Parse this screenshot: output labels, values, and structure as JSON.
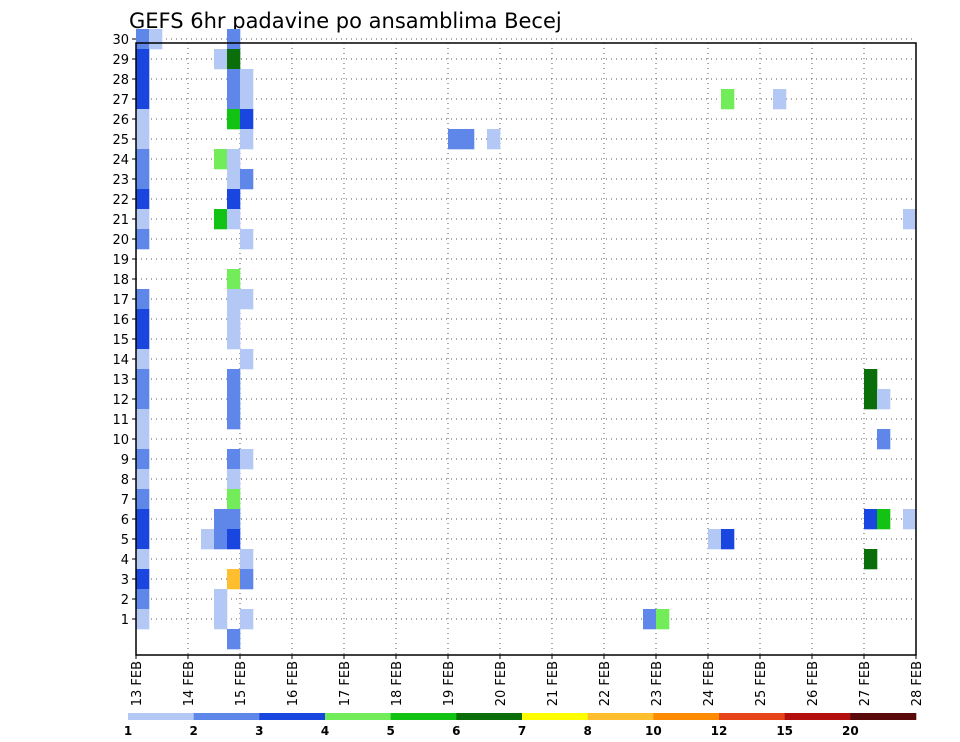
{
  "chart_data": {
    "type": "heatmap",
    "title": "GEFS 6hr padavine po ansamblima Becej",
    "xlabel": "",
    "ylabel": "",
    "x_ticks": [
      "13 FEB",
      "14 FEB",
      "15 FEB",
      "16 FEB",
      "17 FEB",
      "18 FEB",
      "19 FEB",
      "20 FEB",
      "21 FEB",
      "22 FEB",
      "23 FEB",
      "24 FEB",
      "25 FEB",
      "26 FEB",
      "27 FEB",
      "28 FEB"
    ],
    "y_ticks": [
      "1",
      "2",
      "3",
      "4",
      "5",
      "6",
      "7",
      "8",
      "9",
      "10",
      "11",
      "12",
      "13",
      "14",
      "15",
      "16",
      "17",
      "18",
      "19",
      "20",
      "21",
      "22",
      "23",
      "24",
      "25",
      "26",
      "27",
      "28",
      "29",
      "30"
    ],
    "xlim_days": [
      13,
      28
    ],
    "ylim": [
      0,
      30
    ],
    "grid": true,
    "colorbar": {
      "labels": [
        "1",
        "2",
        "3",
        "4",
        "5",
        "6",
        "7",
        "8",
        "10",
        "12",
        "15",
        "20"
      ],
      "colors": [
        "#b3c8f5",
        "#5f87ea",
        "#1a46e0",
        "#73ec5a",
        "#13c313",
        "#0a6e0a",
        "#ffff00",
        "#ffbe2e",
        "#ff8c00",
        "#e8441a",
        "#b40f0f",
        "#5a0a0a"
      ]
    },
    "cells": [
      {
        "member": 30,
        "start": "13 FEB 00Z",
        "level": 2
      },
      {
        "member": 30,
        "start": "13 FEB 06Z",
        "level": 1
      },
      {
        "member": 30,
        "start": "14 FEB 18Z",
        "level": 2
      },
      {
        "member": 29,
        "start": "13 FEB 00Z",
        "level": 3
      },
      {
        "member": 29,
        "start": "14 FEB 12Z",
        "level": 1
      },
      {
        "member": 29,
        "start": "14 FEB 18Z",
        "level": 6
      },
      {
        "member": 28,
        "start": "13 FEB 00Z",
        "level": 3
      },
      {
        "member": 28,
        "start": "14 FEB 18Z",
        "level": 2
      },
      {
        "member": 28,
        "start": "15 FEB 00Z",
        "level": 1
      },
      {
        "member": 27,
        "start": "13 FEB 00Z",
        "level": 3
      },
      {
        "member": 27,
        "start": "14 FEB 18Z",
        "level": 2
      },
      {
        "member": 27,
        "start": "15 FEB 00Z",
        "level": 1
      },
      {
        "member": 27,
        "start": "24 FEB 06Z",
        "level": 4
      },
      {
        "member": 27,
        "start": "25 FEB 06Z",
        "level": 1
      },
      {
        "member": 26,
        "start": "13 FEB 00Z",
        "level": 1
      },
      {
        "member": 26,
        "start": "14 FEB 18Z",
        "level": 5
      },
      {
        "member": 26,
        "start": "15 FEB 00Z",
        "level": 3
      },
      {
        "member": 25,
        "start": "13 FEB 00Z",
        "level": 1
      },
      {
        "member": 25,
        "start": "15 FEB 00Z",
        "level": 1
      },
      {
        "member": 25,
        "start": "19 FEB 00Z",
        "level": 2
      },
      {
        "member": 25,
        "start": "19 FEB 06Z",
        "level": 2
      },
      {
        "member": 25,
        "start": "19 FEB 18Z",
        "level": 1
      },
      {
        "member": 24,
        "start": "13 FEB 00Z",
        "level": 2
      },
      {
        "member": 24,
        "start": "14 FEB 12Z",
        "level": 4
      },
      {
        "member": 24,
        "start": "14 FEB 18Z",
        "level": 1
      },
      {
        "member": 23,
        "start": "13 FEB 00Z",
        "level": 2
      },
      {
        "member": 23,
        "start": "14 FEB 18Z",
        "level": 1
      },
      {
        "member": 23,
        "start": "15 FEB 00Z",
        "level": 2
      },
      {
        "member": 22,
        "start": "13 FEB 00Z",
        "level": 3
      },
      {
        "member": 22,
        "start": "14 FEB 18Z",
        "level": 3
      },
      {
        "member": 21,
        "start": "13 FEB 00Z",
        "level": 1
      },
      {
        "member": 21,
        "start": "14 FEB 12Z",
        "level": 5
      },
      {
        "member": 21,
        "start": "14 FEB 18Z",
        "level": 1
      },
      {
        "member": 21,
        "start": "27 FEB 18Z",
        "level": 1
      },
      {
        "member": 20,
        "start": "13 FEB 00Z",
        "level": 2
      },
      {
        "member": 20,
        "start": "15 FEB 00Z",
        "level": 1
      },
      {
        "member": 18,
        "start": "14 FEB 18Z",
        "level": 4
      },
      {
        "member": 17,
        "start": "13 FEB 00Z",
        "level": 2
      },
      {
        "member": 17,
        "start": "14 FEB 18Z",
        "level": 1
      },
      {
        "member": 17,
        "start": "15 FEB 00Z",
        "level": 1
      },
      {
        "member": 16,
        "start": "13 FEB 00Z",
        "level": 3
      },
      {
        "member": 16,
        "start": "14 FEB 18Z",
        "level": 1
      },
      {
        "member": 15,
        "start": "13 FEB 00Z",
        "level": 3
      },
      {
        "member": 15,
        "start": "14 FEB 18Z",
        "level": 1
      },
      {
        "member": 14,
        "start": "13 FEB 00Z",
        "level": 1
      },
      {
        "member": 14,
        "start": "15 FEB 00Z",
        "level": 1
      },
      {
        "member": 13,
        "start": "13 FEB 00Z",
        "level": 2
      },
      {
        "member": 13,
        "start": "14 FEB 18Z",
        "level": 2
      },
      {
        "member": 13,
        "start": "27 FEB 00Z",
        "level": 6
      },
      {
        "member": 12,
        "start": "13 FEB 00Z",
        "level": 2
      },
      {
        "member": 12,
        "start": "14 FEB 18Z",
        "level": 2
      },
      {
        "member": 12,
        "start": "27 FEB 00Z",
        "level": 6
      },
      {
        "member": 12,
        "start": "27 FEB 06Z",
        "level": 1
      },
      {
        "member": 11,
        "start": "13 FEB 00Z",
        "level": 1
      },
      {
        "member": 11,
        "start": "14 FEB 18Z",
        "level": 2
      },
      {
        "member": 10,
        "start": "13 FEB 00Z",
        "level": 1
      },
      {
        "member": 10,
        "start": "27 FEB 06Z",
        "level": 2
      },
      {
        "member": 9,
        "start": "13 FEB 00Z",
        "level": 2
      },
      {
        "member": 9,
        "start": "14 FEB 18Z",
        "level": 2
      },
      {
        "member": 9,
        "start": "15 FEB 00Z",
        "level": 1
      },
      {
        "member": 8,
        "start": "13 FEB 00Z",
        "level": 1
      },
      {
        "member": 8,
        "start": "14 FEB 18Z",
        "level": 1
      },
      {
        "member": 7,
        "start": "13 FEB 00Z",
        "level": 2
      },
      {
        "member": 7,
        "start": "14 FEB 18Z",
        "level": 4
      },
      {
        "member": 6,
        "start": "13 FEB 00Z",
        "level": 3
      },
      {
        "member": 6,
        "start": "14 FEB 12Z",
        "level": 2
      },
      {
        "member": 6,
        "start": "14 FEB 18Z",
        "level": 2
      },
      {
        "member": 6,
        "start": "27 FEB 00Z",
        "level": 3
      },
      {
        "member": 6,
        "start": "27 FEB 06Z",
        "level": 5
      },
      {
        "member": 6,
        "start": "27 FEB 18Z",
        "level": 1
      },
      {
        "member": 5,
        "start": "13 FEB 00Z",
        "level": 3
      },
      {
        "member": 5,
        "start": "14 FEB 06Z",
        "level": 1
      },
      {
        "member": 5,
        "start": "14 FEB 12Z",
        "level": 2
      },
      {
        "member": 5,
        "start": "14 FEB 18Z",
        "level": 3
      },
      {
        "member": 5,
        "start": "24 FEB 00Z",
        "level": 1
      },
      {
        "member": 5,
        "start": "24 FEB 06Z",
        "level": 3
      },
      {
        "member": 4,
        "start": "13 FEB 00Z",
        "level": 1
      },
      {
        "member": 4,
        "start": "15 FEB 00Z",
        "level": 1
      },
      {
        "member": 4,
        "start": "27 FEB 00Z",
        "level": 6
      },
      {
        "member": 3,
        "start": "13 FEB 00Z",
        "level": 3
      },
      {
        "member": 3,
        "start": "14 FEB 18Z",
        "level": 8
      },
      {
        "member": 3,
        "start": "15 FEB 00Z",
        "level": 2
      },
      {
        "member": 2,
        "start": "13 FEB 00Z",
        "level": 2
      },
      {
        "member": 2,
        "start": "14 FEB 12Z",
        "level": 1
      },
      {
        "member": 1,
        "start": "13 FEB 00Z",
        "level": 1
      },
      {
        "member": 1,
        "start": "14 FEB 12Z",
        "level": 1
      },
      {
        "member": 1,
        "start": "15 FEB 00Z",
        "level": 1
      },
      {
        "member": 1,
        "start": "22 FEB 18Z",
        "level": 2
      },
      {
        "member": 1,
        "start": "23 FEB 00Z",
        "level": 4
      },
      {
        "member": 0,
        "start": "14 FEB 18Z",
        "level": 2
      }
    ]
  }
}
